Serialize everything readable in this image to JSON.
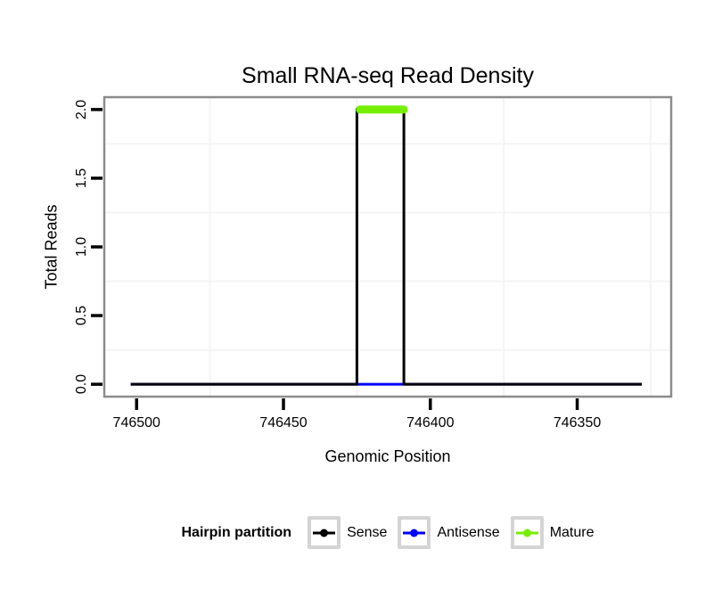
{
  "chart_data": {
    "type": "line",
    "title": "Small RNA-seq Read Density",
    "xlabel": "Genomic Position",
    "ylabel": "Total Reads",
    "x_reversed": true,
    "x_domain": [
      746511,
      746318
    ],
    "y_domain": [
      -0.09,
      2.09
    ],
    "x_ticks": [
      {
        "value": 746500,
        "label": "746500"
      },
      {
        "value": 746450,
        "label": "746450"
      },
      {
        "value": 746400,
        "label": "746400"
      },
      {
        "value": 746350,
        "label": "746350"
      }
    ],
    "y_ticks": [
      {
        "value": 0.0,
        "label": "0.0"
      },
      {
        "value": 0.5,
        "label": "0.5"
      },
      {
        "value": 1.0,
        "label": "1.0"
      },
      {
        "value": 1.5,
        "label": "1.5"
      },
      {
        "value": 2.0,
        "label": "2.0"
      }
    ],
    "minor_grid_x": [
      746475,
      746425,
      746375,
      746325
    ],
    "minor_grid_y": [
      0.25,
      0.75,
      1.25,
      1.75
    ],
    "grid": "minor-only",
    "grid_color": "#f4f4f4",
    "panel_border_color": "#8c8c8c",
    "tick_color": "#000000",
    "series": [
      {
        "name": "Antisense",
        "color": "#0000ff",
        "width": 3,
        "linecap": "butt",
        "points": [
          [
            746502,
            0
          ],
          [
            746328,
            0
          ]
        ]
      },
      {
        "name": "Sense",
        "color": "#000000",
        "width": 3,
        "linecap": "butt",
        "points": [
          [
            746502,
            0
          ],
          [
            746425,
            0
          ],
          [
            746425,
            2
          ],
          [
            746409,
            2
          ],
          [
            746409,
            0
          ],
          [
            746328,
            0
          ]
        ]
      },
      {
        "name": "Mature",
        "color": "#76ee00",
        "width": 9,
        "linecap": "round",
        "points": [
          [
            746424,
            2
          ],
          [
            746409,
            2
          ]
        ]
      }
    ],
    "legend": {
      "title": "Hairpin partition",
      "position": "bottom",
      "entries": [
        {
          "label": "Sense",
          "color": "#000000"
        },
        {
          "label": "Antisense",
          "color": "#0000ff"
        },
        {
          "label": "Mature",
          "color": "#76ee00"
        }
      ]
    }
  }
}
